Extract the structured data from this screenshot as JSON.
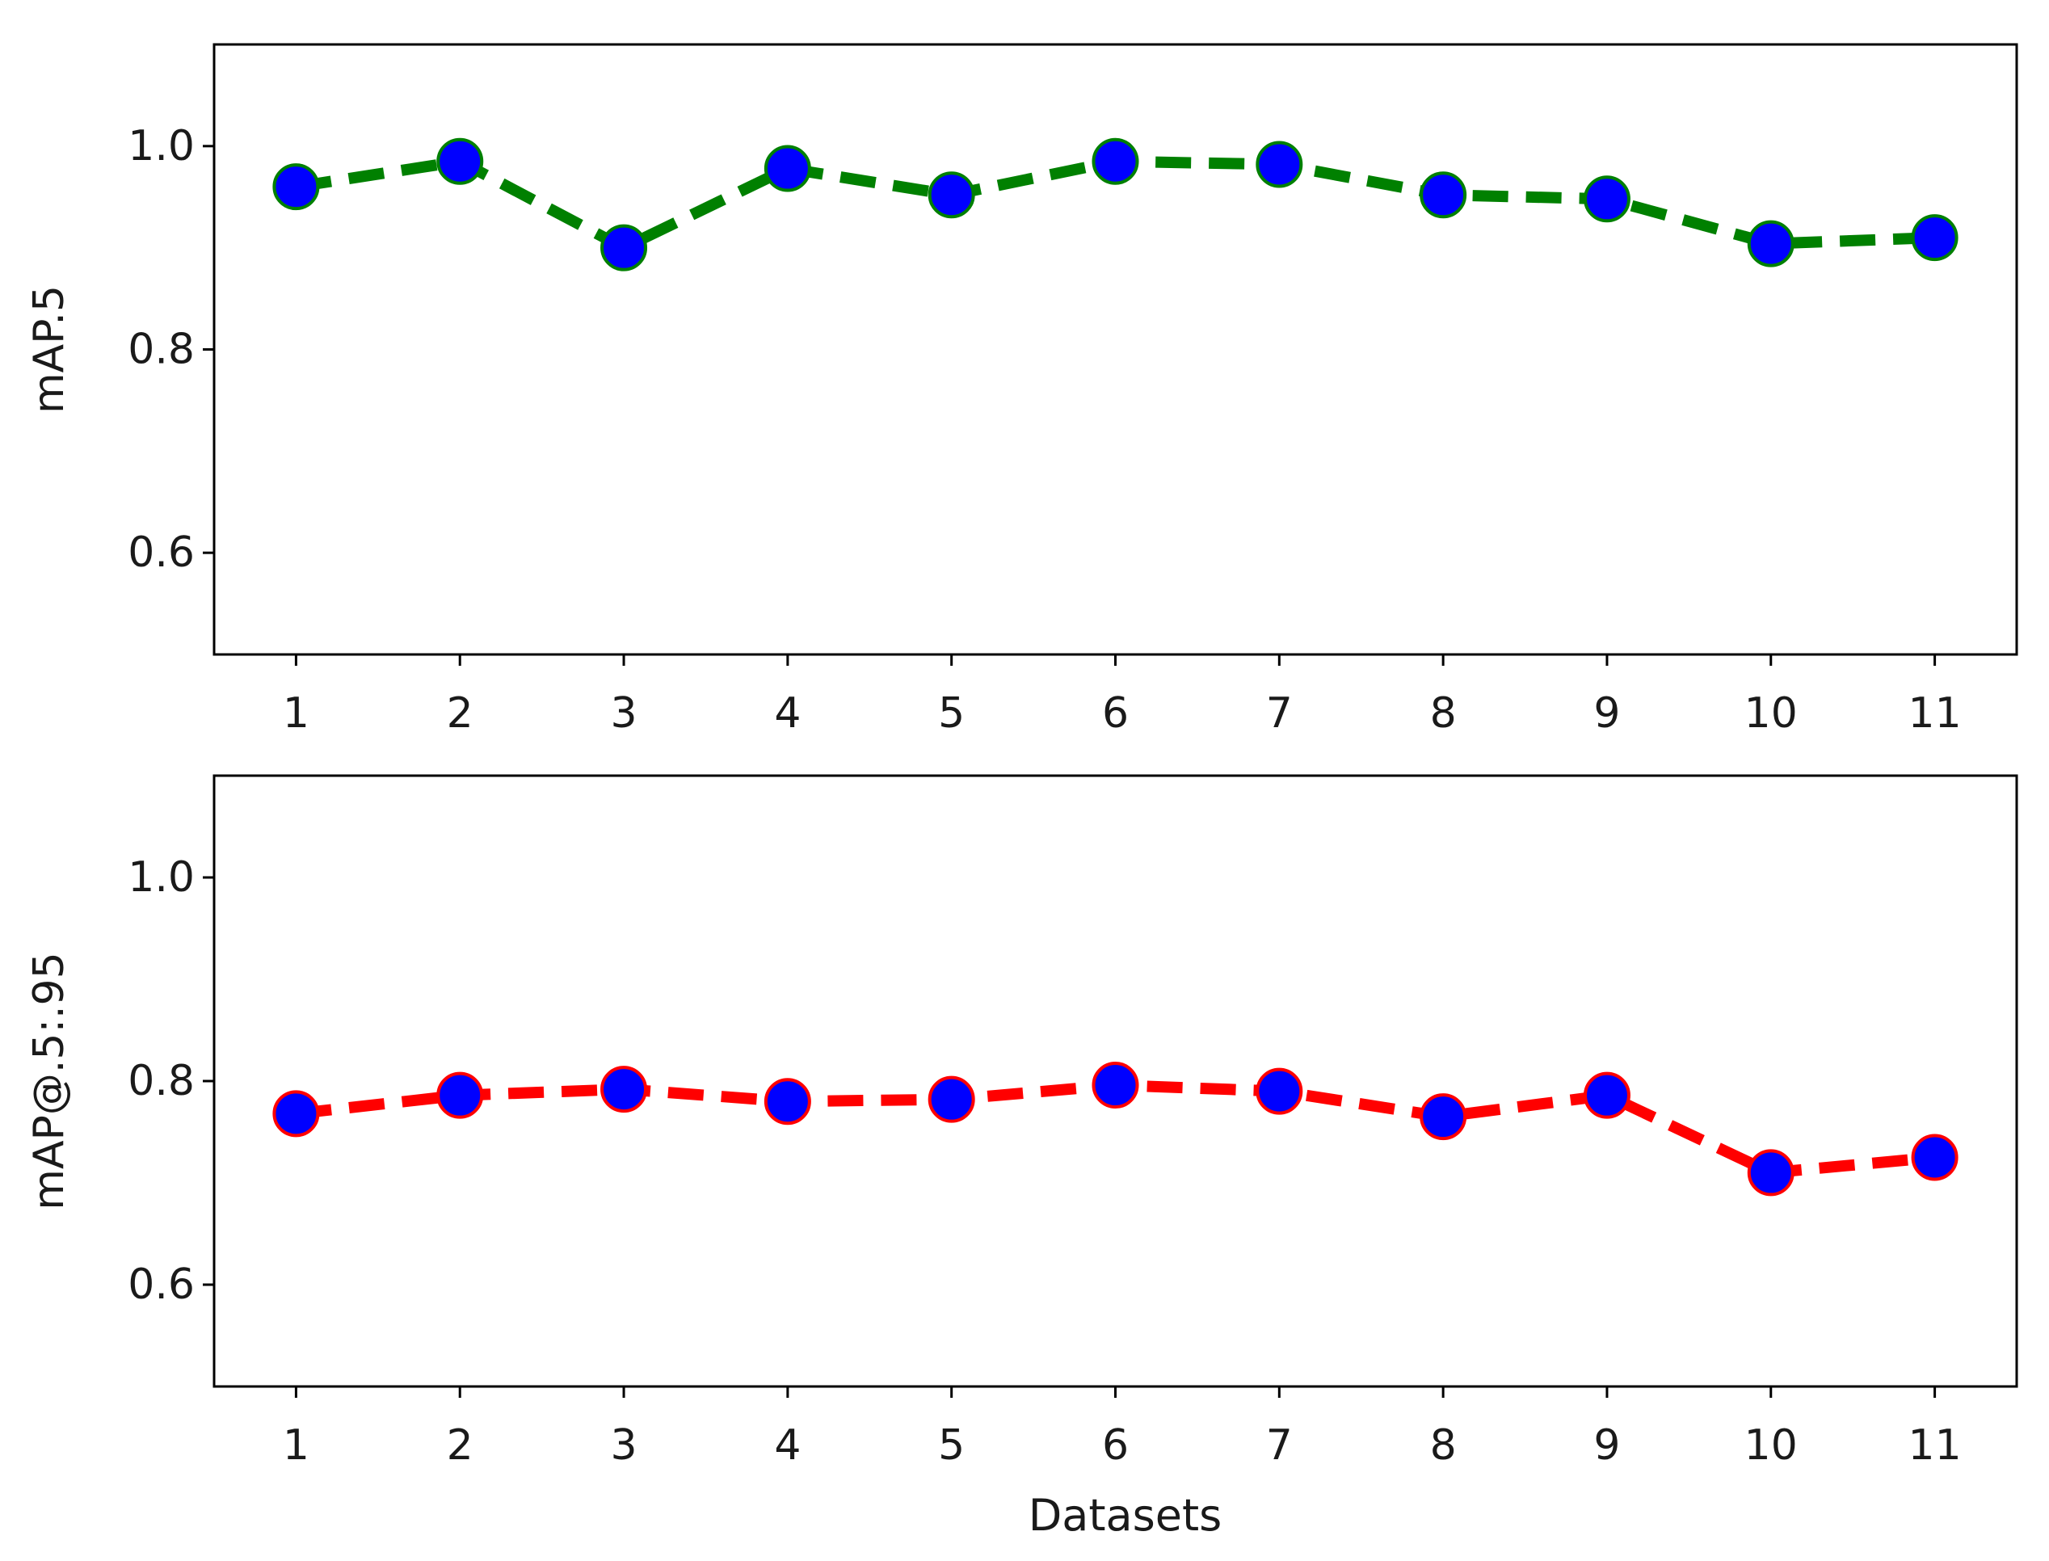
{
  "chart_data": [
    {
      "type": "line",
      "x": [
        1,
        2,
        3,
        4,
        5,
        6,
        7,
        8,
        9,
        10,
        11
      ],
      "series": [
        {
          "values": [
            0.96,
            0.985,
            0.9,
            0.978,
            0.952,
            0.985,
            0.982,
            0.952,
            0.948,
            0.904,
            0.91
          ],
          "line_color": "#008000",
          "marker_color": "#0000ff",
          "line_style": "dashed"
        }
      ],
      "xlabel": "",
      "ylabel": "mAP.5",
      "xlim": [
        0.5,
        11.5
      ],
      "ylim": [
        0.5,
        1.1
      ],
      "xticks": [
        "1",
        "2",
        "3",
        "4",
        "5",
        "6",
        "7",
        "8",
        "9",
        "10",
        "11"
      ],
      "yticks": [
        "0.6",
        "0.8",
        "1.0"
      ],
      "grid": false
    },
    {
      "type": "line",
      "x": [
        1,
        2,
        3,
        4,
        5,
        6,
        7,
        8,
        9,
        10,
        11
      ],
      "series": [
        {
          "values": [
            0.768,
            0.786,
            0.792,
            0.78,
            0.782,
            0.796,
            0.79,
            0.765,
            0.786,
            0.71,
            0.725
          ],
          "line_color": "#ff0000",
          "marker_color": "#0000ff",
          "line_style": "dashed"
        }
      ],
      "xlabel": "Datasets",
      "ylabel": "mAP@.5:.95",
      "xlim": [
        0.5,
        11.5
      ],
      "ylim": [
        0.5,
        1.1
      ],
      "xticks": [
        "1",
        "2",
        "3",
        "4",
        "5",
        "6",
        "7",
        "8",
        "9",
        "10",
        "11"
      ],
      "yticks": [
        "0.6",
        "0.8",
        "1.0"
      ],
      "grid": false
    }
  ]
}
